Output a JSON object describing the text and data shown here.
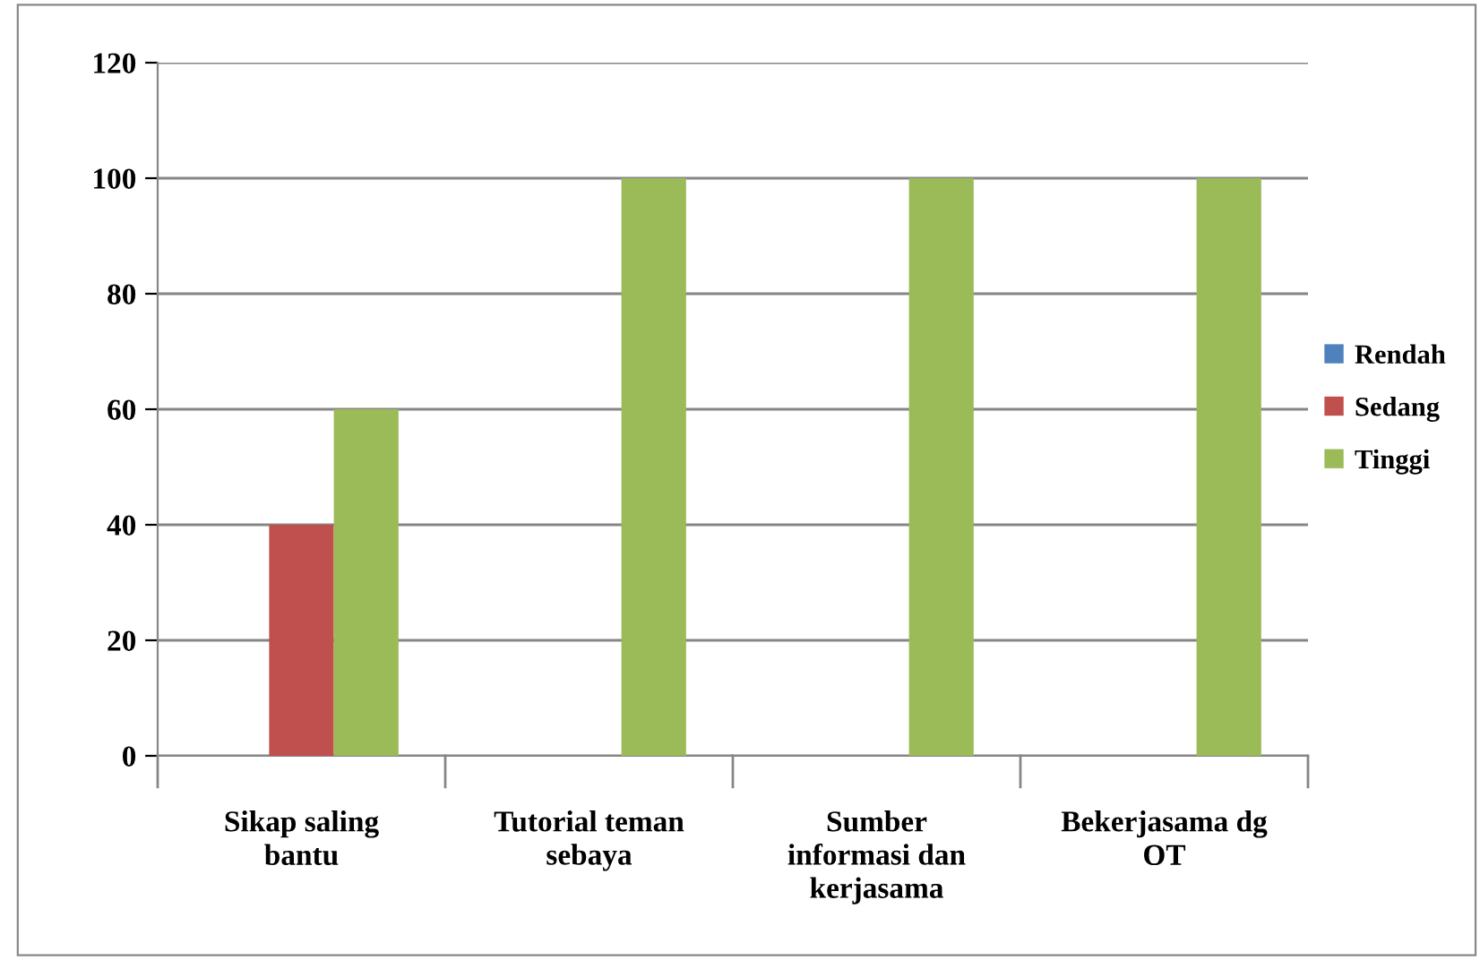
{
  "chart_data": {
    "type": "bar",
    "categories": [
      "Sikap saling\nbantu",
      "Tutorial teman\nsebaya",
      "Sumber\ninformasi dan\nkerjasama",
      "Bekerjasama dg\nOT"
    ],
    "series": [
      {
        "name": "Rendah",
        "color": "#4f81bd",
        "values": [
          0,
          0,
          0,
          0
        ]
      },
      {
        "name": "Sedang",
        "color": "#c0504d",
        "values": [
          40,
          0,
          0,
          0
        ]
      },
      {
        "name": "Tinggi",
        "color": "#9bbb59",
        "values": [
          60,
          100,
          100,
          100
        ]
      }
    ],
    "ylim": [
      0,
      120
    ],
    "yticks": [
      0,
      20,
      40,
      60,
      80,
      100,
      120
    ],
    "grid": "y",
    "legend": "right"
  }
}
